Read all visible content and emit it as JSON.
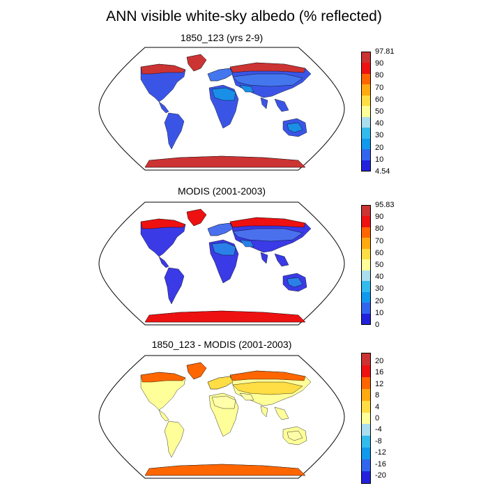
{
  "figure": {
    "title": "ANN visible white-sky albedo (% reflected)"
  },
  "panels": [
    {
      "title": "1850_123 (yrs 2-9)",
      "colorbar_labels": [
        "97.81",
        "90",
        "80",
        "70",
        "60",
        "50",
        "40",
        "30",
        "20",
        "10",
        "4.54"
      ],
      "colors": [
        "#cc3333",
        "#ee1111",
        "#ff6600",
        "#ffaa11",
        "#ffdd44",
        "#ffff99",
        "#aaddee",
        "#33bbee",
        "#1199ee",
        "#3366ee",
        "#2222dd"
      ],
      "map_fill": {
        "ocean": "#ffffff",
        "land": "#3a55e6",
        "high_lat": "#cc3333",
        "mid_lat": "#4477ee",
        "desert": "#1a8fe8"
      }
    },
    {
      "title": "MODIS (2001-2003)",
      "colorbar_labels": [
        "95.83",
        "90",
        "80",
        "70",
        "60",
        "50",
        "40",
        "30",
        "20",
        "10",
        "0"
      ],
      "colors": [
        "#cc3333",
        "#ee1111",
        "#ff6600",
        "#ffaa11",
        "#ffdd44",
        "#ffff99",
        "#aaddee",
        "#33bbee",
        "#1199ee",
        "#3366ee",
        "#2222dd"
      ],
      "map_fill": {
        "ocean": "#ffffff",
        "land": "#3a3ae6",
        "high_lat": "#ee1111",
        "mid_lat": "#4a70ee",
        "desert": "#2a80e8"
      }
    },
    {
      "title": "1850_123 - MODIS (2001-2003)",
      "colorbar_labels": [
        "20",
        "16",
        "12",
        "8",
        "4",
        "0",
        "-4",
        "-8",
        "-12",
        "-16",
        "-20"
      ],
      "colors": [
        "#cc3333",
        "#ee1111",
        "#ff6600",
        "#ffaa11",
        "#ffdd44",
        "#ffff99",
        "#aaddee",
        "#33bbee",
        "#1199ee",
        "#3366ee",
        "#2222dd"
      ],
      "map_fill": {
        "ocean": "#ffffff",
        "land": "#ffff99",
        "high_lat": "#ff6600",
        "mid_lat": "#ffdd44",
        "desert": "#ffffaa"
      }
    }
  ]
}
